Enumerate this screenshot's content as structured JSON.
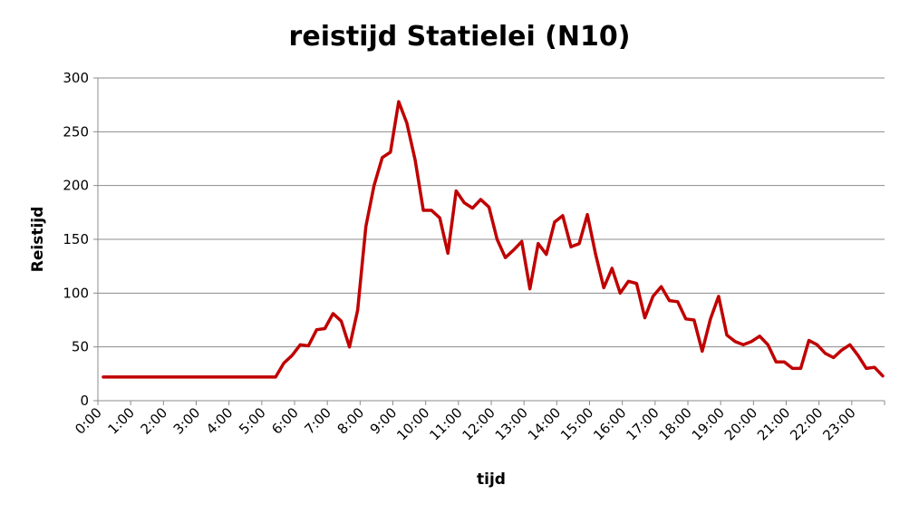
{
  "chart_data": {
    "type": "line",
    "title": "reistijd Statielei (N10)",
    "xlabel": "tijd",
    "ylabel": "Reistijd",
    "ylim": [
      0,
      300
    ],
    "yticks": [
      "0",
      "50",
      "100",
      "150",
      "200",
      "250",
      "300"
    ],
    "xlim": [
      0,
      24
    ],
    "xtick_labels": [
      "0:00",
      "1:00",
      "2:00",
      "3:00",
      "4:00",
      "5:00",
      "6:00",
      "7:00",
      "8:00",
      "9:00",
      "10:00",
      "11:00",
      "12:00",
      "13:00",
      "14:00",
      "15:00",
      "16:00",
      "17:00",
      "18:00",
      "19:00",
      "20:00",
      "21:00",
      "22:00",
      "23:00"
    ],
    "grid": true,
    "legend": "none",
    "series_color": "#c00000",
    "series": [
      {
        "values": [
          22,
          22,
          22,
          22,
          22,
          22,
          22,
          22,
          22,
          22,
          22,
          22,
          22,
          22,
          22,
          22,
          22,
          22,
          22,
          22,
          22,
          22,
          35,
          42,
          52,
          51,
          66,
          67,
          81,
          74,
          50,
          84,
          162,
          200,
          226,
          231,
          278,
          258,
          224,
          177,
          177,
          170,
          137,
          195,
          184,
          179,
          187,
          180,
          150,
          133,
          140,
          148,
          104,
          146,
          136,
          166,
          172,
          143,
          146,
          173,
          136,
          105,
          123,
          100,
          111,
          109,
          77,
          97,
          106,
          93,
          92,
          76,
          75,
          46,
          76,
          97,
          61,
          55,
          52,
          55,
          60,
          52,
          36,
          36,
          30,
          30,
          56,
          52,
          44,
          40,
          47,
          52,
          42,
          30,
          31,
          23
        ]
      }
    ]
  }
}
